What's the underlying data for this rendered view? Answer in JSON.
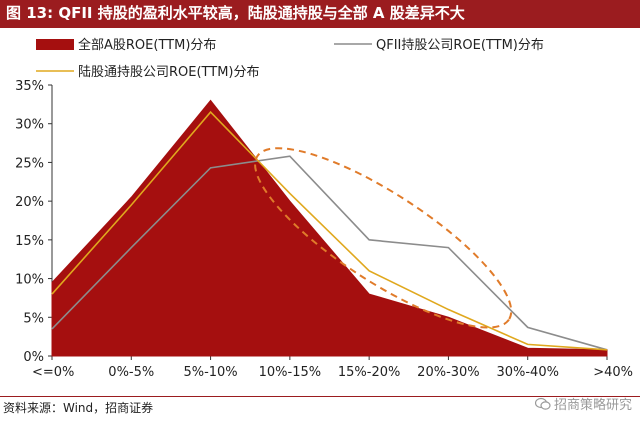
{
  "figure": {
    "title": "图 13:  QFII 持股的盈利水平较高，陆股通持股与全部 A 股差异不大",
    "source": "资料来源：Wind，招商证券",
    "watermark": "招商策略研究"
  },
  "chart_data": {
    "type": "area",
    "categories": [
      "<=0%",
      "0%-5%",
      "5%-10%",
      "10%-15%",
      "15%-20%",
      "20%-30%",
      "30%-40%",
      ">40%"
    ],
    "yticks": [
      "0%",
      "5%",
      "10%",
      "15%",
      "20%",
      "25%",
      "30%",
      "35%"
    ],
    "ylim": [
      0,
      35
    ],
    "series": [
      {
        "name": "全部A股ROE(TTM)分布",
        "kind": "area",
        "color": "#a50f0f",
        "values": [
          9.5,
          20.5,
          33,
          20,
          8,
          5,
          1,
          0.8
        ]
      },
      {
        "name": "QFII持股公司ROE(TTM)分布",
        "kind": "line",
        "color": "#8c8c8c",
        "values": [
          3.5,
          14,
          24.3,
          25.8,
          15,
          14,
          3.7,
          0.8
        ]
      },
      {
        "name": "陆股通持股公司ROE(TTM)分布",
        "kind": "line",
        "color": "#e0a81e",
        "values": [
          8,
          19.5,
          31.5,
          21,
          11,
          6,
          1.5,
          0.8
        ]
      }
    ],
    "legend_position": "top",
    "grid": false,
    "annotation": "dashed-ellipse-highlight"
  }
}
